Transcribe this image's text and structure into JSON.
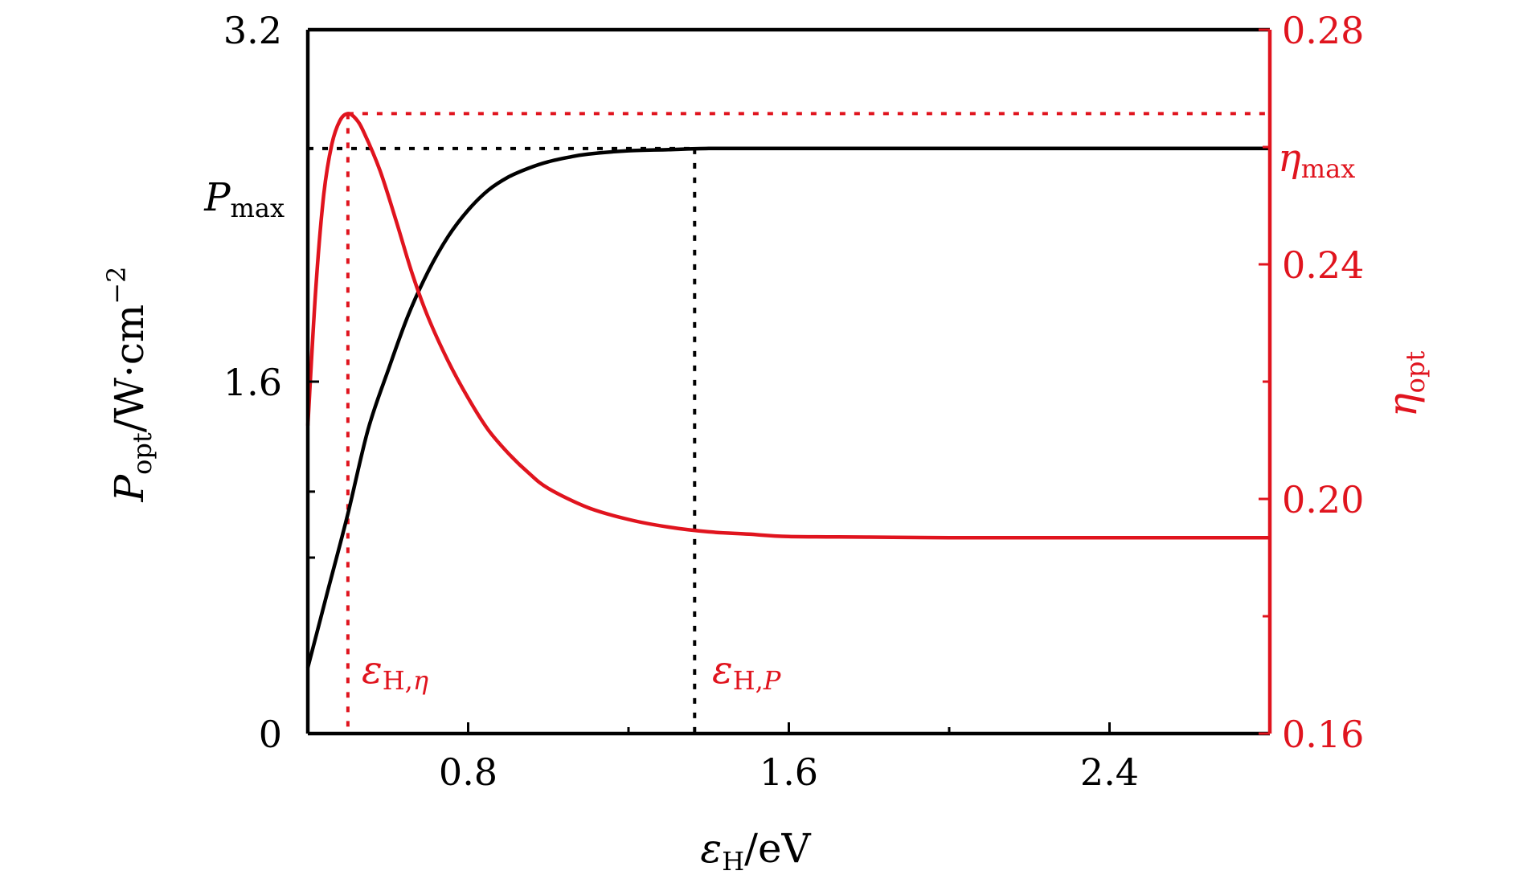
{
  "chart_data": {
    "type": "line",
    "x_axis": {
      "label_var": "ε",
      "label_sub": "H",
      "label_unit": "/eV",
      "ticks": [
        0.8,
        1.6,
        2.4
      ],
      "tick_labels": [
        "0.8",
        "1.6",
        "2.4"
      ],
      "minor_ticks": [
        1.2,
        2.0
      ],
      "range": [
        0.4,
        2.8
      ]
    },
    "y_left": {
      "label_var": "P",
      "label_sub": "opt",
      "label_unit": "/W·cm",
      "label_sup": "−2",
      "ticks": [
        0,
        1.6,
        3.2
      ],
      "tick_labels": [
        "0",
        "1.6",
        "3.2"
      ],
      "minor_ticks": [
        0.8,
        1.1
      ],
      "range": [
        0,
        3.2
      ],
      "color": "#000000"
    },
    "y_right": {
      "label_var": "η",
      "label_sub": "opt",
      "ticks": [
        0.16,
        0.2,
        0.24,
        0.28
      ],
      "tick_labels": [
        "0.16",
        "0.20",
        "0.24",
        "0.28"
      ],
      "minor_ticks": [
        0.18,
        0.22,
        0.26
      ],
      "range": [
        0.16,
        0.28
      ],
      "color": "#e0141e"
    },
    "series": [
      {
        "axis": "left",
        "color": "#000000",
        "x": [
          0.4,
          0.45,
          0.5,
          0.55,
          0.6,
          0.65,
          0.7,
          0.75,
          0.8,
          0.85,
          0.9,
          0.95,
          1.0,
          1.05,
          1.1,
          1.2,
          1.3,
          1.4,
          1.5,
          1.6,
          2.0,
          2.4,
          2.8
        ],
        "values": [
          0.3,
          0.65,
          1.0,
          1.38,
          1.65,
          1.9,
          2.1,
          2.26,
          2.38,
          2.47,
          2.53,
          2.57,
          2.6,
          2.62,
          2.635,
          2.65,
          2.655,
          2.66,
          2.66,
          2.66,
          2.66,
          2.66,
          2.66
        ]
      },
      {
        "axis": "right",
        "color": "#e0141e",
        "x": [
          0.4,
          0.42,
          0.44,
          0.46,
          0.48,
          0.5,
          0.52,
          0.54,
          0.58,
          0.62,
          0.66,
          0.7,
          0.75,
          0.8,
          0.85,
          0.9,
          0.95,
          1.0,
          1.1,
          1.2,
          1.3,
          1.4,
          1.5,
          1.6,
          1.8,
          2.0,
          2.4,
          2.8
        ],
        "values": [
          0.2125,
          0.236,
          0.252,
          0.2605,
          0.2645,
          0.2657,
          0.2648,
          0.2625,
          0.256,
          0.2475,
          0.2385,
          0.231,
          0.2235,
          0.2172,
          0.2118,
          0.2078,
          0.2045,
          0.2018,
          0.1985,
          0.1965,
          0.1952,
          0.1944,
          0.194,
          0.1936,
          0.1935,
          0.1934,
          0.1934,
          0.1934
        ]
      }
    ],
    "reference_lines": {
      "p_max": 2.66,
      "eta_max": 0.2657,
      "eps_h_eta": 0.5,
      "eps_h_p": 1.365
    },
    "annotations": {
      "p_max": {
        "var": "P",
        "sub": "max"
      },
      "eta_max": {
        "var": "η",
        "sub": "max"
      },
      "eps_h_eta": {
        "var": "ε",
        "sub": "H,",
        "sub_italic": "η"
      },
      "eps_h_p": {
        "var": "ε",
        "sub": "H,",
        "sub_italic": "P"
      }
    }
  }
}
